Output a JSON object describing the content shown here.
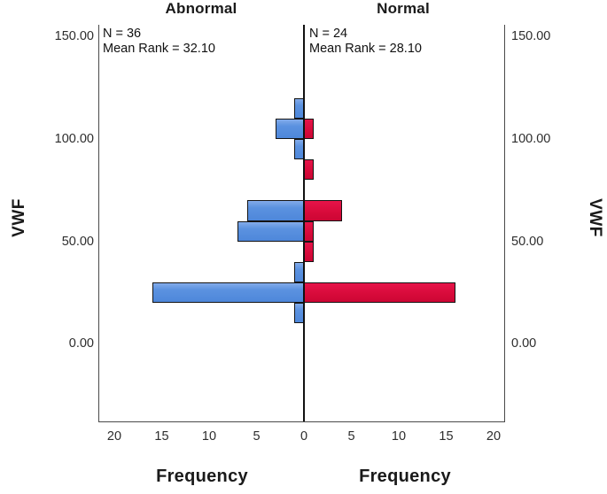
{
  "chart_data": {
    "type": "bar",
    "subtype": "population_pyramid_back_to_back_histogram",
    "panels": [
      {
        "label": "Abnormal",
        "side": "left",
        "n_label": "N = 36",
        "mean_rank_label": "Mean Rank = 32.10",
        "n": 36,
        "mean_rank": 32.1,
        "color": "#5B92E0"
      },
      {
        "label": "Normal",
        "side": "right",
        "n_label": "N = 24",
        "mean_rank_label": "Mean Rank = 28.10",
        "n": 24,
        "mean_rank": 28.1,
        "color": "#D70A3A"
      }
    ],
    "y_axis": {
      "label": "VWF",
      "ticks": [
        "150.00",
        "100.00",
        "50.00",
        "0.00"
      ],
      "tick_values": [
        150,
        100,
        50,
        0
      ],
      "range": [
        0,
        150
      ],
      "bin_width": 10
    },
    "x_axis": {
      "label": "Frequency",
      "ticks_left": [
        "20",
        "15",
        "10",
        "5"
      ],
      "tick_values_left": [
        20,
        15,
        10,
        5
      ],
      "zero_tick": "0",
      "ticks_right": [
        "5",
        "10",
        "15",
        "20"
      ],
      "tick_values_right": [
        5,
        10,
        15,
        20
      ],
      "max_per_side": 21.5,
      "grid": false
    },
    "bins": [
      {
        "vwf_range": "110-120",
        "vwf_low": 110,
        "vwf_high": 120,
        "abnormal": 1,
        "normal": 0
      },
      {
        "vwf_range": "100-110",
        "vwf_low": 100,
        "vwf_high": 110,
        "abnormal": 3,
        "normal": 1
      },
      {
        "vwf_range": "90-100",
        "vwf_low": 90,
        "vwf_high": 100,
        "abnormal": 1,
        "normal": 0
      },
      {
        "vwf_range": "80-90",
        "vwf_low": 80,
        "vwf_high": 90,
        "abnormal": 0,
        "normal": 1
      },
      {
        "vwf_range": "70-80",
        "vwf_low": 70,
        "vwf_high": 80,
        "abnormal": 0,
        "normal": 0
      },
      {
        "vwf_range": "60-70",
        "vwf_low": 60,
        "vwf_high": 70,
        "abnormal": 6,
        "normal": 4
      },
      {
        "vwf_range": "50-60",
        "vwf_low": 50,
        "vwf_high": 60,
        "abnormal": 7,
        "normal": 1
      },
      {
        "vwf_range": "40-50",
        "vwf_low": 40,
        "vwf_high": 50,
        "abnormal": 0,
        "normal": 1
      },
      {
        "vwf_range": "30-40",
        "vwf_low": 30,
        "vwf_high": 40,
        "abnormal": 1,
        "normal": 0
      },
      {
        "vwf_range": "20-30",
        "vwf_low": 20,
        "vwf_high": 30,
        "abnormal": 16,
        "normal": 16
      },
      {
        "vwf_range": "10-20",
        "vwf_low": 10,
        "vwf_high": 20,
        "abnormal": 1,
        "normal": 0
      }
    ],
    "colors": {
      "abnormal_bar": "#5B92E0",
      "normal_bar": "#D70A3A",
      "bar_border": "#141414",
      "axis_frame": "#4A4A4A",
      "center_axis": "#111111",
      "text": "#1A1A1A",
      "background": "#FFFFFF"
    },
    "legend_position": "none"
  }
}
